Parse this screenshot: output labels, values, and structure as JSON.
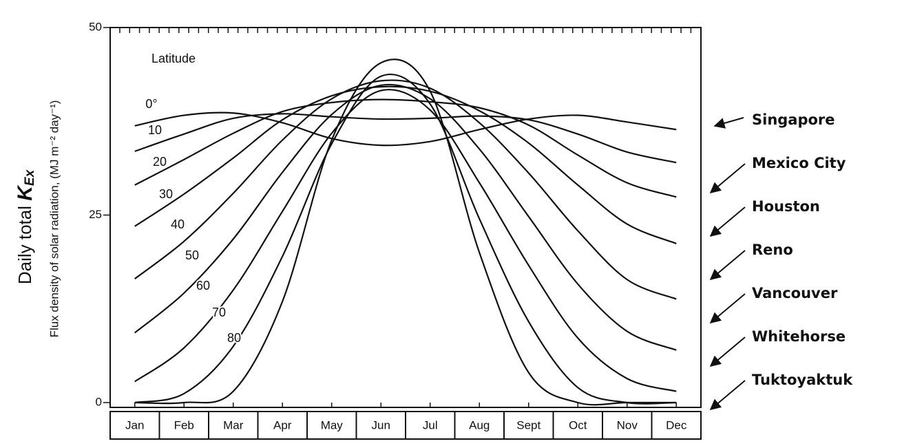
{
  "chart_data": {
    "type": "line",
    "annotation_title": "Latitude",
    "y_label_main": "Daily total",
    "y_label_symbol": "K",
    "y_label_subscript": "Ex",
    "y_label_detail": "Flux density of solar radiation, (MJ m⁻² day⁻¹)",
    "categories": [
      "Jan",
      "Feb",
      "Mar",
      "Apr",
      "May",
      "Jun",
      "Jul",
      "Aug",
      "Sept",
      "Oct",
      "Nov",
      "Dec"
    ],
    "series": [
      {
        "name": "0°",
        "color": "#111111",
        "values": [
          36.9,
          38.3,
          38.6,
          37.3,
          35.2,
          34.3,
          34.8,
          36.4,
          37.8,
          38.3,
          37.4,
          36.4
        ]
      },
      {
        "name": "10",
        "color": "#111111",
        "values": [
          33.5,
          35.8,
          37.9,
          38.5,
          38.1,
          37.8,
          37.9,
          38.2,
          37.7,
          35.8,
          33.4,
          32.0
        ]
      },
      {
        "name": "20",
        "color": "#111111",
        "values": [
          29.0,
          32.4,
          35.9,
          38.8,
          40.0,
          40.4,
          40.1,
          39.3,
          37.0,
          33.0,
          29.3,
          27.4
        ]
      },
      {
        "name": "30",
        "color": "#111111",
        "values": [
          23.5,
          27.8,
          32.6,
          37.7,
          40.9,
          42.1,
          41.5,
          38.9,
          34.6,
          29.0,
          23.8,
          21.2
        ]
      },
      {
        "name": "40",
        "color": "#111111",
        "values": [
          16.5,
          21.5,
          27.9,
          35.0,
          40.5,
          42.9,
          41.9,
          37.3,
          30.6,
          22.9,
          16.4,
          13.8
        ]
      },
      {
        "name": "50",
        "color": "#111111",
        "values": [
          9.3,
          14.6,
          21.8,
          30.7,
          38.4,
          42.3,
          40.5,
          33.8,
          24.8,
          15.8,
          9.5,
          7.0
        ]
      },
      {
        "name": "60",
        "color": "#111111",
        "values": [
          2.8,
          7.3,
          15.0,
          25.5,
          35.9,
          41.6,
          39.0,
          29.3,
          18.3,
          8.6,
          3.2,
          1.5
        ]
      },
      {
        "name": "70",
        "color": "#111111",
        "values": [
          0,
          1.2,
          7.5,
          19.5,
          34.5,
          43.5,
          39.8,
          24.5,
          10.8,
          2.0,
          0,
          0
        ]
      },
      {
        "name": "80",
        "color": "#111111",
        "values": [
          0,
          0,
          1.5,
          13.5,
          35.0,
          45.3,
          41.5,
          20.0,
          4.0,
          0,
          0,
          0
        ]
      }
    ],
    "annotations": [
      "Singapore",
      "Mexico City",
      "Houston",
      "Reno",
      "Vancouver",
      "Whitehorse",
      "Tuktoyaktuk"
    ],
    "ylim": [
      0,
      50
    ],
    "yticks": [
      0,
      25,
      50
    ],
    "grid": false
  }
}
